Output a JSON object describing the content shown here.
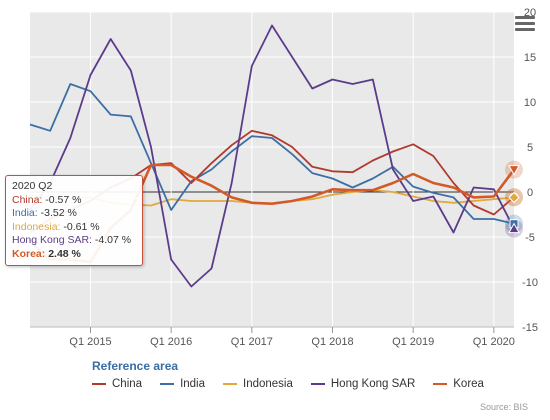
{
  "chart_data": {
    "type": "line",
    "title": "",
    "xlabel": "",
    "ylabel": "",
    "ylim": [
      -15,
      20
    ],
    "y_ticks": [
      20,
      15,
      10,
      5,
      0,
      -5,
      -10,
      -15
    ],
    "x_ticks": [
      {
        "label": "Q1 2015",
        "x": 2015.0
      },
      {
        "label": "Q1 2016",
        "x": 2016.0
      },
      {
        "label": "Q1 2017",
        "x": 2017.0
      },
      {
        "label": "Q1 2018",
        "x": 2018.0
      },
      {
        "label": "Q1 2019",
        "x": 2019.0
      },
      {
        "label": "Q1 2020",
        "x": 2020.0
      }
    ],
    "xlim": [
      2014.25,
      2020.25
    ],
    "grid": true,
    "y_axis_position": "right",
    "legend_title": "Reference area",
    "legend_position": "bottom",
    "x": [
      2014.25,
      2014.5,
      2014.75,
      2015.0,
      2015.25,
      2015.5,
      2015.75,
      2016.0,
      2016.25,
      2016.5,
      2016.75,
      2017.0,
      2017.25,
      2017.5,
      2017.75,
      2018.0,
      2018.25,
      2018.5,
      2018.75,
      2019.0,
      2019.25,
      2019.5,
      2019.75,
      2020.0,
      2020.25
    ],
    "series": [
      {
        "name": "China",
        "color": "#b03a2e",
        "width": 1.8,
        "values": [
          -4.5,
          -3.0,
          -2.0,
          -1.0,
          0.5,
          1.5,
          3.0,
          3.2,
          1.0,
          3.2,
          5.2,
          6.8,
          6.3,
          5.0,
          2.8,
          2.3,
          2.2,
          3.5,
          4.5,
          5.3,
          4.0,
          1.0,
          -1.5,
          -2.5,
          -0.57
        ]
      },
      {
        "name": "India",
        "color": "#3d6fa5",
        "width": 1.8,
        "values": [
          7.5,
          6.8,
          12.0,
          11.2,
          8.6,
          8.4,
          3.2,
          -2.0,
          1.2,
          2.5,
          4.5,
          6.2,
          6.0,
          4.2,
          2.1,
          1.5,
          0.5,
          1.5,
          2.8,
          0.6,
          -0.1,
          -0.6,
          -3.0,
          -3.0,
          -3.52
        ]
      },
      {
        "name": "Indonesia",
        "color": "#e1a83e",
        "width": 1.8,
        "values": [
          -0.5,
          -0.5,
          -0.6,
          -0.6,
          -1.2,
          -1.4,
          -1.5,
          -0.8,
          -1.0,
          -1.0,
          -1.0,
          -1.2,
          -1.3,
          -1.0,
          -0.8,
          -0.3,
          0.0,
          0.2,
          0.0,
          -0.5,
          -1.0,
          -1.2,
          -1.0,
          -0.8,
          -0.61
        ]
      },
      {
        "name": "Hong Kong SAR",
        "color": "#5c3c8a",
        "width": 1.8,
        "values": [
          -2.0,
          1.0,
          6.0,
          13.0,
          17.0,
          13.5,
          5.0,
          -7.5,
          -10.5,
          -8.5,
          1.0,
          14.0,
          18.5,
          15.0,
          11.5,
          12.5,
          12.0,
          12.5,
          2.5,
          -1.0,
          -0.5,
          -4.5,
          0.5,
          0.3,
          -4.07
        ]
      },
      {
        "name": "Korea",
        "color": "#d35a27",
        "width": 2.6,
        "values": [
          -5.5,
          -7.5,
          -7.5,
          -7.8,
          -4.0,
          -2.0,
          3.0,
          3.0,
          1.7,
          0.7,
          -0.6,
          -1.2,
          -1.3,
          -1.0,
          -0.5,
          0.3,
          0.2,
          0.2,
          1.0,
          2.0,
          1.0,
          0.5,
          -0.6,
          -0.5,
          2.48
        ]
      }
    ]
  },
  "tooltip": {
    "period": "2020 Q2",
    "rows": [
      {
        "name": "China",
        "value": "-0.57 %",
        "color": "#b03a2e"
      },
      {
        "name": "India",
        "value": "-3.52 %",
        "color": "#3d6fa5"
      },
      {
        "name": "Indonesia",
        "value": "-0.61 %",
        "color": "#e1a83e"
      },
      {
        "name": "Hong Kong SAR",
        "value": "-4.07 %",
        "color": "#5c3c8a"
      },
      {
        "name": "Korea",
        "value": "2.48 %",
        "color": "#d35a27",
        "bold": true
      }
    ]
  },
  "credits": "Source: BIS",
  "menu_icon": "hamburger-menu-icon"
}
